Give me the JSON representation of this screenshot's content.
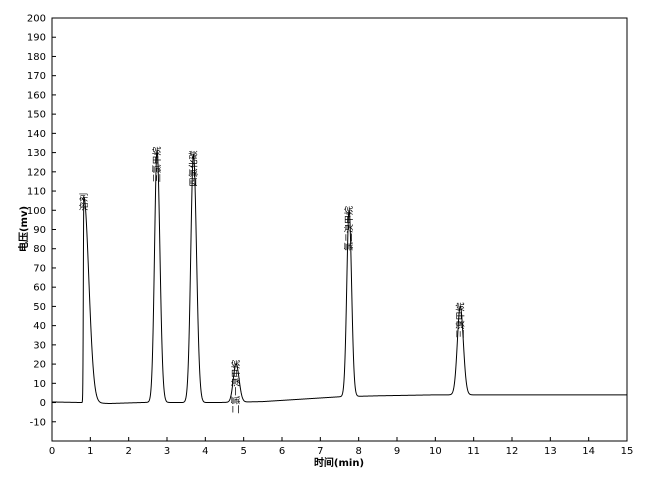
{
  "chart_data": {
    "type": "line",
    "xlabel": "时间(min)",
    "ylabel": "电压(mv)",
    "xlim": [
      0,
      15
    ],
    "ylim": [
      -20,
      200
    ],
    "xticks": [
      0,
      1,
      2,
      3,
      4,
      5,
      6,
      7,
      8,
      9,
      10,
      11,
      12,
      13,
      14,
      15
    ],
    "yticks": [
      -10,
      0,
      10,
      20,
      30,
      40,
      50,
      60,
      70,
      80,
      90,
      100,
      110,
      120,
      130,
      140,
      150,
      160,
      170,
      180,
      190,
      200
    ],
    "grid": false,
    "line_color": "#000000",
    "baseline": [
      [
        0,
        0.3
      ],
      [
        0.8,
        0
      ],
      [
        1.5,
        -0.5
      ],
      [
        2.5,
        0.1
      ],
      [
        3.5,
        0
      ],
      [
        4.3,
        0
      ],
      [
        5.5,
        0.5
      ],
      [
        7.5,
        3
      ],
      [
        8.5,
        3.5
      ],
      [
        10,
        4
      ],
      [
        12,
        4
      ],
      [
        15,
        4
      ]
    ],
    "peaks": [
      {
        "label": "溶剂",
        "rt": 0.83,
        "height": 107,
        "width_left": 0.012,
        "width_right": 0.13
      },
      {
        "label": "三氯甲烷",
        "rt": 2.74,
        "height": 131,
        "width_left": 0.065,
        "width_right": 0.075
      },
      {
        "label": "四氯化碳",
        "rt": 3.69,
        "height": 129,
        "width_left": 0.07,
        "width_right": 0.08
      },
      {
        "label": "二氯一溴甲烷",
        "rt": 4.8,
        "height": 20,
        "width_left": 0.07,
        "width_right": 0.08
      },
      {
        "label": "氯二溴甲烷",
        "rt": 7.75,
        "height": 97,
        "width_left": 0.06,
        "width_right": 0.065
      },
      {
        "label": "三溴甲烷",
        "rt": 10.65,
        "height": 46,
        "width_left": 0.075,
        "width_right": 0.08
      }
    ]
  }
}
